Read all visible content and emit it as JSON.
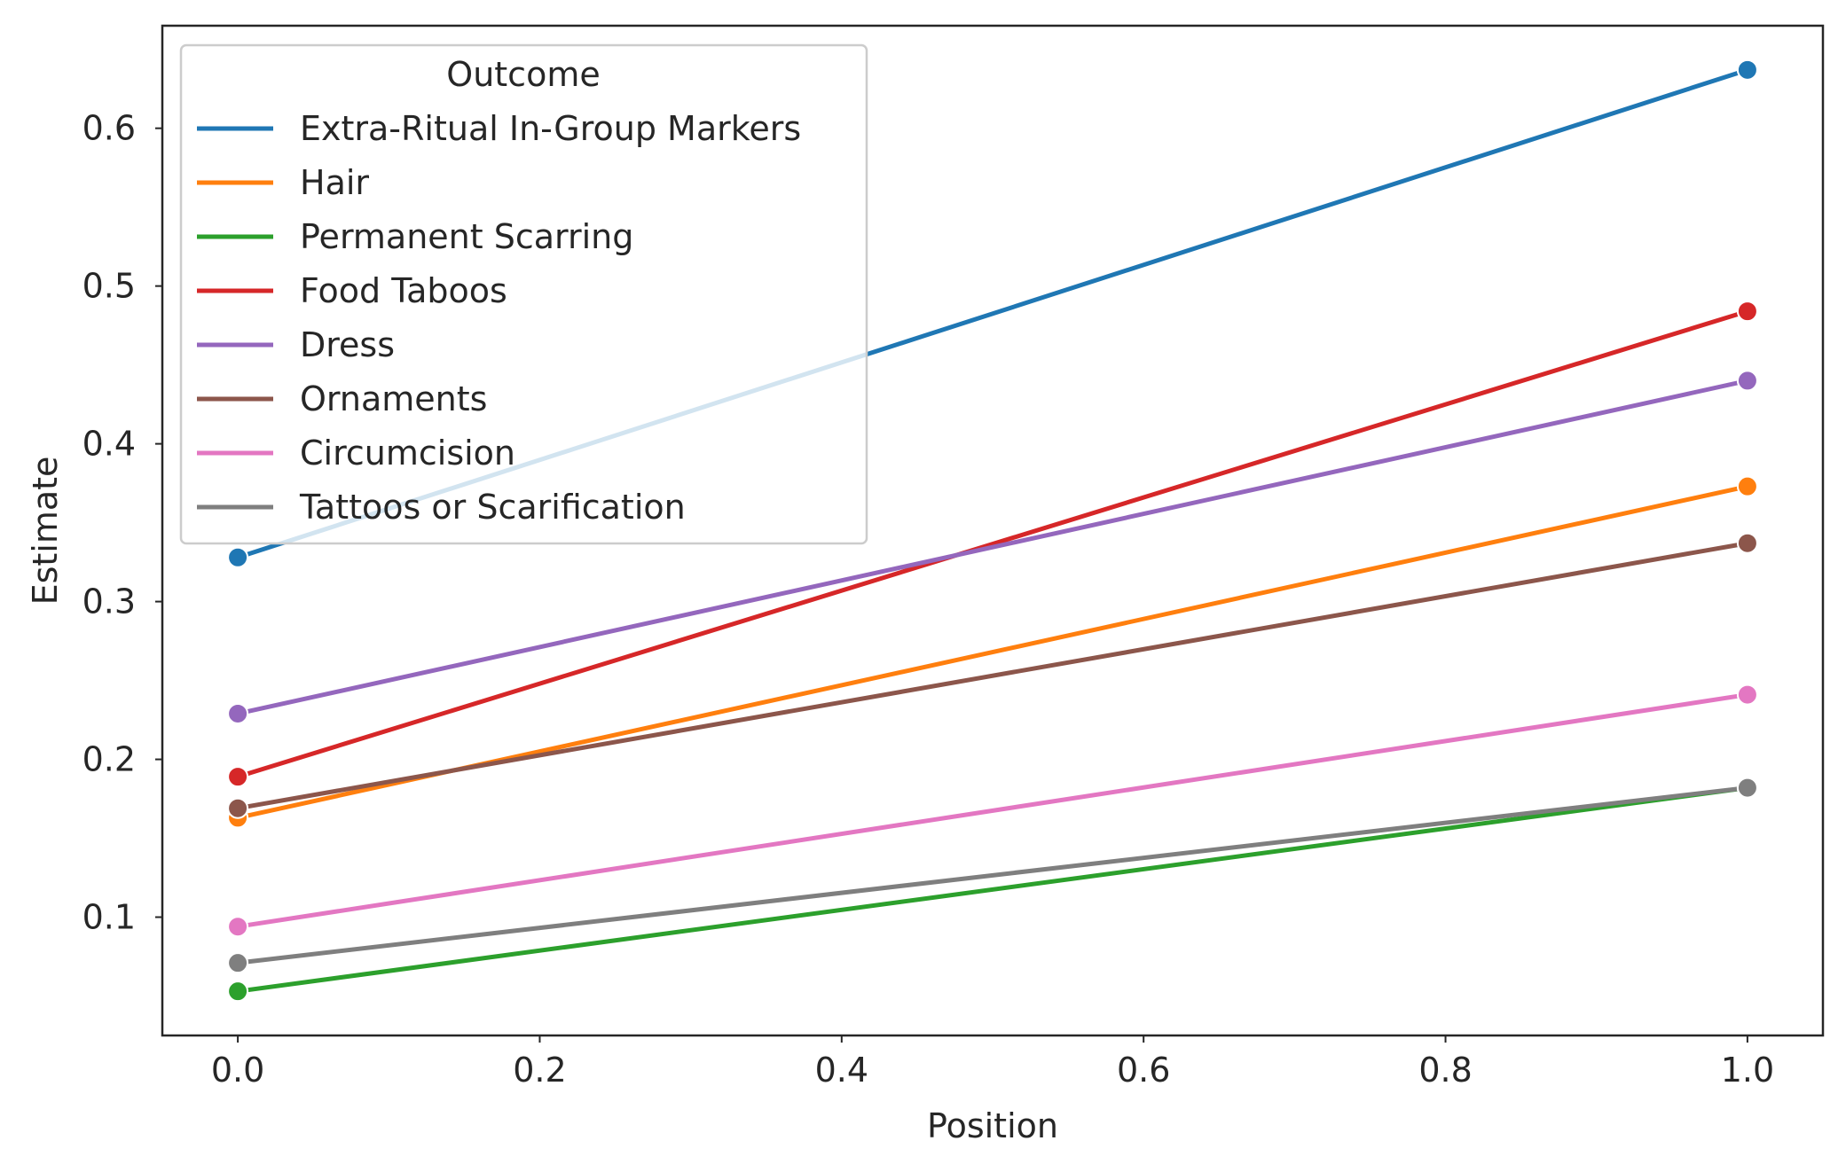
{
  "chart_data": {
    "type": "line",
    "title": "",
    "xlabel": "Position",
    "ylabel": "Estimate",
    "xlim": [
      -0.05,
      1.05
    ],
    "ylim": [
      0.025,
      0.665
    ],
    "x_ticks": [
      0.0,
      0.2,
      0.4,
      0.6,
      0.8,
      1.0
    ],
    "x_tick_labels": [
      "0.0",
      "0.2",
      "0.4",
      "0.6",
      "0.8",
      "1.0"
    ],
    "y_ticks": [
      0.1,
      0.2,
      0.3,
      0.4,
      0.5,
      0.6
    ],
    "y_tick_labels": [
      "0.1",
      "0.2",
      "0.3",
      "0.4",
      "0.5",
      "0.6"
    ],
    "grid": false,
    "legend": {
      "title": "Outcome",
      "placement": "upper-left"
    },
    "x": [
      0.0,
      1.0
    ],
    "series": [
      {
        "name": "Extra-Ritual In-Group Markers",
        "values": [
          0.328,
          0.637
        ],
        "color": "#1f77b4"
      },
      {
        "name": "Hair",
        "values": [
          0.163,
          0.373
        ],
        "color": "#ff7f0e"
      },
      {
        "name": "Permanent Scarring",
        "values": [
          0.053,
          0.182
        ],
        "color": "#2ca02c"
      },
      {
        "name": "Food Taboos",
        "values": [
          0.189,
          0.484
        ],
        "color": "#d62728"
      },
      {
        "name": "Dress",
        "values": [
          0.229,
          0.44
        ],
        "color": "#9467bd"
      },
      {
        "name": "Ornaments",
        "values": [
          0.169,
          0.337
        ],
        "color": "#8c564b"
      },
      {
        "name": "Circumcision",
        "values": [
          0.094,
          0.241
        ],
        "color": "#e377c2"
      },
      {
        "name": "Tattoos or Scarification",
        "values": [
          0.071,
          0.182
        ],
        "color": "#7f7f7f"
      }
    ]
  }
}
